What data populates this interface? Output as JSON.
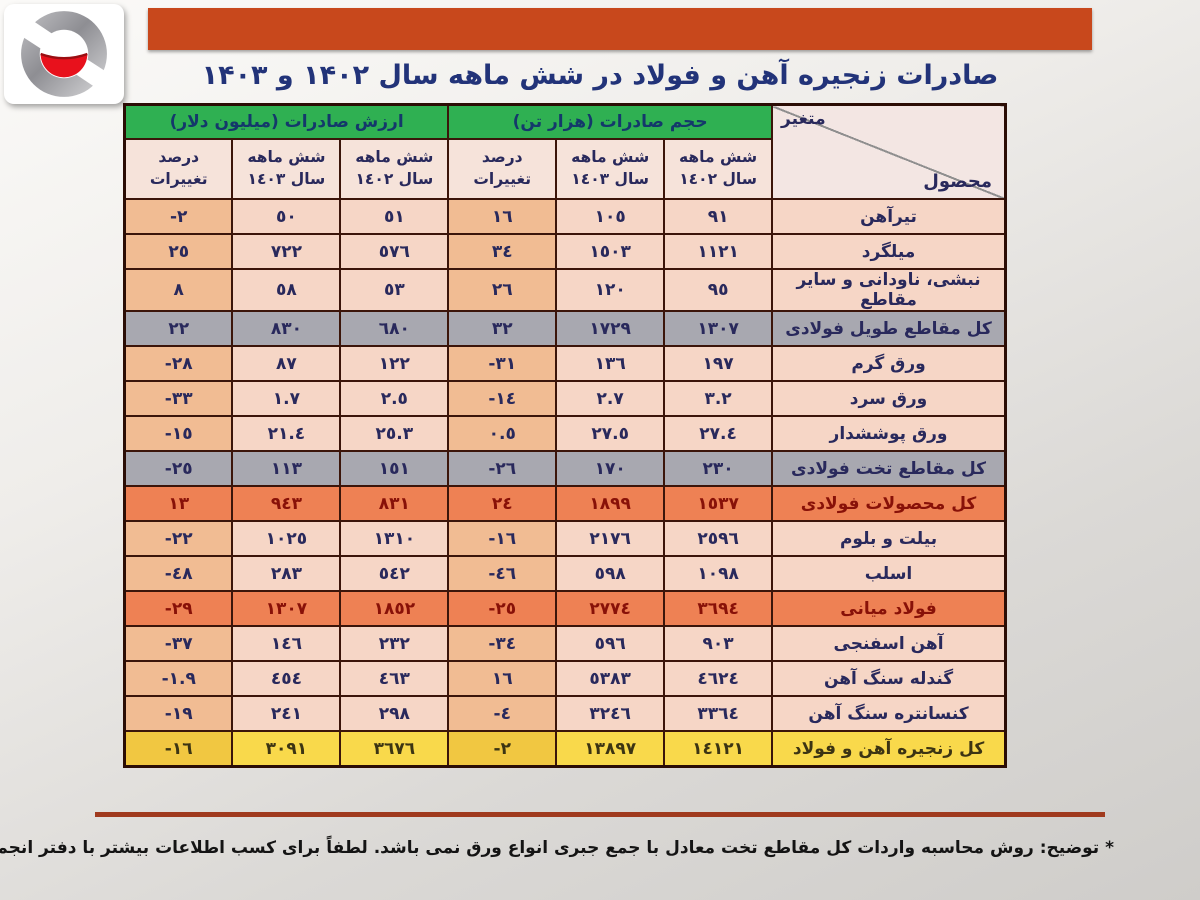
{
  "title": "صادرات زنجیره آهن و فولاد در شش ماهه سال ۱۴۰۲ و ۱۴۰۳",
  "footnote": "* توضیح: روش محاسبه واردات کل مقاطع تخت معادل با جمع جبری انواع ورق نمی باشد. لطفاً برای کسب اطلاعات بیشتر با دفتر انجمن تماس بگیرید.",
  "colors": {
    "banner": "#c8481c",
    "title_text": "#223379",
    "group_header_green": "#2fb052",
    "subheader_pink": "#f6e3da",
    "row_normal": "#f6d6c6",
    "row_pct_shade": "#f1bc93",
    "row_total_grey": "#a8a8b0",
    "row_total_orange": "#ee8154",
    "row_total_yellow": "#f9d94b",
    "border_dark": "#3b150a",
    "rule_red": "#a03a1e"
  },
  "table": {
    "corner": {
      "variable": "متغیر",
      "product": "محصول"
    },
    "groups": {
      "volume": "حجم صادرات (هزار تن)",
      "value": "ارزش صادرات (میلیون دلار)"
    },
    "sub": {
      "y1402": "شش ماهه سال ١٤٠٢",
      "y1403": "شش ماهه سال ١٤٠٣",
      "pct": "درصد تغییرات"
    },
    "rows": [
      {
        "style": "normal",
        "product": "تیرآهن",
        "vol": {
          "y1402": "٩١",
          "y1403": "١٠٥",
          "pct": "١٦"
        },
        "val": {
          "y1402": "٥١",
          "y1403": "٥٠",
          "pct": "-٢"
        }
      },
      {
        "style": "normal",
        "product": "میلگرد",
        "vol": {
          "y1402": "١١٢١",
          "y1403": "١٥٠٣",
          "pct": "٣٤"
        },
        "val": {
          "y1402": "٥٧٦",
          "y1403": "٧٢٢",
          "pct": "٢٥"
        }
      },
      {
        "style": "normal",
        "product": "نبشی، ناودانی و سایر مقاطع",
        "vol": {
          "y1402": "٩٥",
          "y1403": "١٢٠",
          "pct": "٢٦"
        },
        "val": {
          "y1402": "٥٣",
          "y1403": "٥٨",
          "pct": "٨"
        }
      },
      {
        "style": "grey",
        "product": "کل مقاطع طویل فولادی",
        "vol": {
          "y1402": "١٣٠٧",
          "y1403": "١٧٢٩",
          "pct": "٣٢"
        },
        "val": {
          "y1402": "٦٨٠",
          "y1403": "٨٣٠",
          "pct": "٢٢"
        }
      },
      {
        "style": "normal",
        "product": "ورق گرم",
        "vol": {
          "y1402": "١٩٧",
          "y1403": "١٣٦",
          "pct": "-٣١"
        },
        "val": {
          "y1402": "١٢٢",
          "y1403": "٨٧",
          "pct": "-٢٨"
        }
      },
      {
        "style": "normal",
        "product": "ورق سرد",
        "vol": {
          "y1402": "٣.٢",
          "y1403": "٢.٧",
          "pct": "-١٤"
        },
        "val": {
          "y1402": "٢.٥",
          "y1403": "١.٧",
          "pct": "-٣٣"
        }
      },
      {
        "style": "normal",
        "product": "ورق پوششدار",
        "vol": {
          "y1402": "٢٧.٤",
          "y1403": "٢٧.٥",
          "pct": "٠.٥"
        },
        "val": {
          "y1402": "٢٥.٣",
          "y1403": "٢١.٤",
          "pct": "-١٥"
        }
      },
      {
        "style": "grey",
        "product": "کل مقاطع تخت فولادی",
        "vol": {
          "y1402": "٢٣٠",
          "y1403": "١٧٠",
          "pct": "-٢٦"
        },
        "val": {
          "y1402": "١٥١",
          "y1403": "١١٣",
          "pct": "-٢٥"
        }
      },
      {
        "style": "orange",
        "product": "کل محصولات فولادی",
        "vol": {
          "y1402": "١٥٣٧",
          "y1403": "١٨٩٩",
          "pct": "٢٤"
        },
        "val": {
          "y1402": "٨٣١",
          "y1403": "٩٤٣",
          "pct": "١٣"
        }
      },
      {
        "style": "normal",
        "product": "بیلت و بلوم",
        "vol": {
          "y1402": "٢٥٩٦",
          "y1403": "٢١٧٦",
          "pct": "-١٦"
        },
        "val": {
          "y1402": "١٣١٠",
          "y1403": "١٠٢٥",
          "pct": "-٢٢"
        }
      },
      {
        "style": "normal",
        "product": "اسلب",
        "vol": {
          "y1402": "١٠٩٨",
          "y1403": "٥٩٨",
          "pct": "-٤٦"
        },
        "val": {
          "y1402": "٥٤٢",
          "y1403": "٢٨٣",
          "pct": "-٤٨"
        }
      },
      {
        "style": "orange",
        "product": "فولاد میانی",
        "vol": {
          "y1402": "٣٦٩٤",
          "y1403": "٢٧٧٤",
          "pct": "-٢٥"
        },
        "val": {
          "y1402": "١٨٥٢",
          "y1403": "١٣٠٧",
          "pct": "-٢٩"
        }
      },
      {
        "style": "normal",
        "product": "آهن اسفنجی",
        "vol": {
          "y1402": "٩٠٣",
          "y1403": "٥٩٦",
          "pct": "-٣٤"
        },
        "val": {
          "y1402": "٢٣٢",
          "y1403": "١٤٦",
          "pct": "-٣٧"
        }
      },
      {
        "style": "normal",
        "product": "گندله سنگ آهن",
        "vol": {
          "y1402": "٤٦٢٤",
          "y1403": "٥٣٨٣",
          "pct": "١٦"
        },
        "val": {
          "y1402": "٤٦٣",
          "y1403": "٤٥٤",
          "pct": "-١.٩"
        }
      },
      {
        "style": "normal",
        "product": "کنسانتره سنگ آهن",
        "vol": {
          "y1402": "٣٣٦٤",
          "y1403": "٣٢٤٦",
          "pct": "-٤"
        },
        "val": {
          "y1402": "٢٩٨",
          "y1403": "٢٤١",
          "pct": "-١٩"
        }
      },
      {
        "style": "yellow",
        "product": "کل زنجیره آهن و فولاد",
        "vol": {
          "y1402": "١٤١٢١",
          "y1403": "١٣٨٩٧",
          "pct": "-٢"
        },
        "val": {
          "y1402": "٣٦٧٦",
          "y1403": "٣٠٩١",
          "pct": "-١٦"
        }
      }
    ]
  },
  "chart_data": {
    "type": "table",
    "title": "صادرات زنجیره آهن و فولاد در شش ماهه سال ۱۴۰۲ و ۱۴۰۳",
    "column_groups": [
      "حجم صادرات (هزار تن)",
      "ارزش صادرات (میلیون دلار)"
    ],
    "columns": [
      "محصول",
      "حجم ۱۴۰۲",
      "حجم ۱۴۰۳",
      "درصد تغییرات حجم",
      "ارزش ۱۴۰۲",
      "ارزش ۱۴۰۳",
      "درصد تغییرات ارزش"
    ],
    "categories": [
      "تیرآهن",
      "میلگرد",
      "نبشی، ناودانی و سایر مقاطع",
      "کل مقاطع طویل فولادی",
      "ورق گرم",
      "ورق سرد",
      "ورق پوششدار",
      "کل مقاطع تخت فولادی",
      "کل محصولات فولادی",
      "بیلت و بلوم",
      "اسلب",
      "فولاد میانی",
      "آهن اسفنجی",
      "گندله سنگ آهن",
      "کنسانتره سنگ آهن",
      "کل زنجیره آهن و فولاد"
    ],
    "series": [
      {
        "name": "volume_6m_1402_kt",
        "values": [
          91,
          1121,
          95,
          1307,
          197,
          3.2,
          27.4,
          230,
          1537,
          2596,
          1098,
          3694,
          903,
          4624,
          3364,
          14121
        ]
      },
      {
        "name": "volume_6m_1403_kt",
        "values": [
          105,
          1503,
          120,
          1729,
          136,
          2.7,
          27.5,
          170,
          1899,
          2176,
          598,
          2774,
          596,
          5383,
          3246,
          13897
        ]
      },
      {
        "name": "volume_change_pct",
        "values": [
          16,
          34,
          26,
          32,
          -31,
          -14,
          0.5,
          -26,
          24,
          -16,
          -46,
          -25,
          -34,
          16,
          -4,
          -2
        ]
      },
      {
        "name": "value_6m_1402_musd",
        "values": [
          51,
          576,
          53,
          680,
          122,
          2.5,
          25.3,
          151,
          831,
          1310,
          542,
          1852,
          232,
          463,
          298,
          3676
        ]
      },
      {
        "name": "value_6m_1403_musd",
        "values": [
          50,
          722,
          58,
          830,
          87,
          1.7,
          21.4,
          113,
          943,
          1025,
          283,
          1307,
          146,
          454,
          241,
          3091
        ]
      },
      {
        "name": "value_change_pct",
        "values": [
          -2,
          25,
          8,
          22,
          -28,
          -33,
          -15,
          -25,
          13,
          -22,
          -48,
          -29,
          -37,
          -1.9,
          -19,
          -16
        ]
      }
    ]
  }
}
